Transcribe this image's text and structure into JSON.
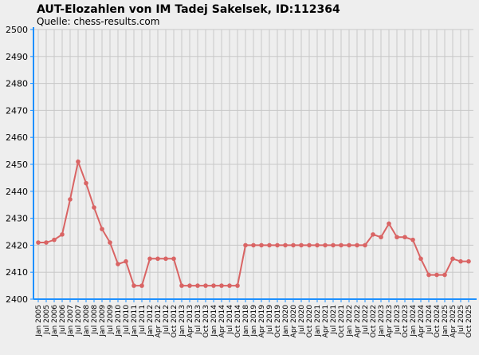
{
  "chart_data": {
    "type": "line",
    "title": "AUT-Elozahlen von IM Tadej Sakelsek, ID:112364",
    "subtitle": "Quelle: chess-results.com",
    "xlabel": "",
    "ylabel": "",
    "ylim": [
      2400,
      2500
    ],
    "yticks": [
      2400,
      2410,
      2420,
      2430,
      2440,
      2450,
      2460,
      2470,
      2480,
      2490,
      2500
    ],
    "grid": true,
    "colors": {
      "background": "#eeeeee",
      "grid": "#c8c8c8",
      "axis": "#1e90ff",
      "line": "#d96464"
    },
    "categories": [
      "Jan 2005",
      "Jul 2005",
      "Jan 2006",
      "Jul 2006",
      "Jan 2007",
      "Jul 2007",
      "Jan 2008",
      "Jul 2008",
      "Jan 2009",
      "Jul 2009",
      "Jan 2010",
      "Jul 2010",
      "Jan 2011",
      "Jul 2011",
      "Jan 2012",
      "Apr 2012",
      "Jul 2012",
      "Oct 2012",
      "Jan 2013",
      "Apr 2013",
      "Jul 2013",
      "Oct 2013",
      "Jan 2014",
      "Apr 2014",
      "Jul 2014",
      "Oct 2014",
      "Jan 2018",
      "Jan 2019",
      "Apr 2019",
      "Jul 2019",
      "Oct 2019",
      "Jan 2020",
      "Apr 2020",
      "Jul 2020",
      "Oct 2020",
      "Jan 2021",
      "Apr 2021",
      "Jul 2021",
      "Oct 2021",
      "Jan 2022",
      "Apr 2022",
      "Jul 2022",
      "Oct 2022",
      "Jan 2023",
      "Apr 2023",
      "Jul 2023",
      "Oct 2023",
      "Jan 2024",
      "Apr 2024",
      "Jul 2024",
      "Oct 2024",
      "Jan 2025",
      "Apr 2025",
      "Jul 2025",
      "Oct 2025"
    ],
    "series": [
      {
        "values": [
          2421,
          2421,
          2422,
          2424,
          2437,
          2451,
          2443,
          2434,
          2426,
          2421,
          2413,
          2414,
          2405,
          2405,
          2415,
          2415,
          2415,
          2415,
          2405,
          2405,
          2405,
          2405,
          2405,
          2405,
          2405,
          2405,
          2420,
          2420,
          2420,
          2420,
          2420,
          2420,
          2420,
          2420,
          2420,
          2420,
          2420,
          2420,
          2420,
          2420,
          2420,
          2420,
          2424,
          2423,
          2428,
          2423,
          2423,
          2422,
          2415,
          2409,
          2409,
          2409,
          2415,
          2414,
          2414
        ]
      }
    ]
  }
}
